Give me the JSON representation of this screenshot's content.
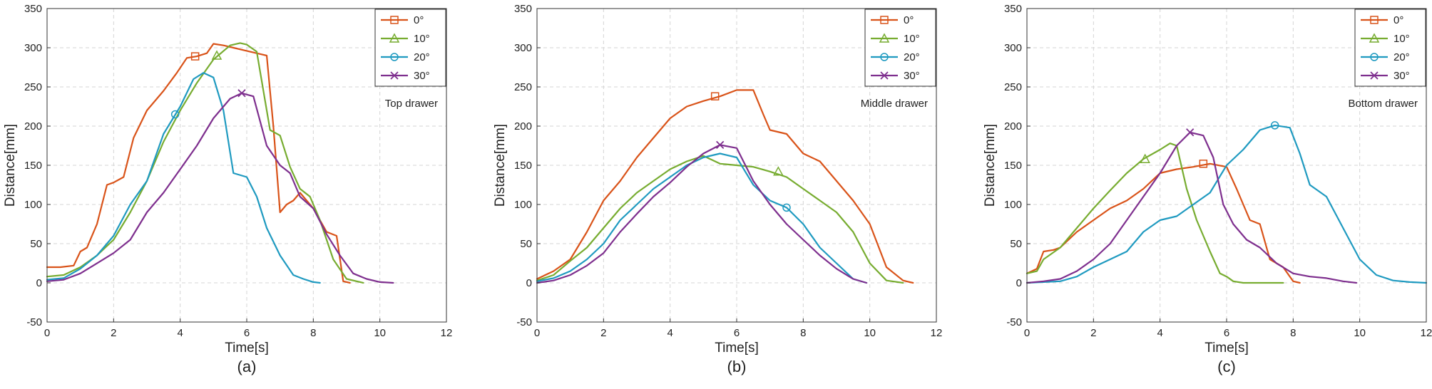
{
  "colors": {
    "c0": "#D95319",
    "c10": "#77AC30",
    "c20": "#1F9AC0",
    "c30": "#7E2F8E",
    "grid": "#d4d4d4",
    "axis": "#333333"
  },
  "chart_data": [
    {
      "type": "line",
      "caption": "(a)",
      "annotation": "Top drawer",
      "xlabel": "Time[s]",
      "ylabel": "Distance[mm]",
      "xlim": [
        0,
        12
      ],
      "ylim": [
        -50,
        350
      ],
      "xticks": [
        "0",
        "2",
        "4",
        "6",
        "8",
        "10",
        "12"
      ],
      "yticks": [
        "-50",
        "0",
        "50",
        "100",
        "150",
        "200",
        "250",
        "300",
        "350"
      ],
      "grid": true,
      "legend_position": "top-right",
      "series": [
        {
          "name": "0°",
          "color_key": "c0",
          "marker": "square",
          "marker_at": [
            4.45,
            289
          ],
          "x": [
            0,
            0.4,
            0.8,
            1.0,
            1.2,
            1.5,
            1.8,
            2.0,
            2.3,
            2.6,
            3.0,
            3.5,
            3.9,
            4.2,
            4.5,
            4.8,
            5.0,
            5.3,
            5.6,
            6.0,
            6.4,
            6.6,
            6.8,
            7.0,
            7.2,
            7.4,
            7.6,
            8.0,
            8.4,
            8.7,
            8.9,
            9.1
          ],
          "y": [
            20,
            20,
            22,
            40,
            45,
            75,
            125,
            128,
            135,
            185,
            220,
            245,
            268,
            287,
            289,
            293,
            305,
            303,
            300,
            296,
            292,
            290,
            200,
            90,
            100,
            105,
            115,
            95,
            65,
            60,
            2,
            0
          ]
        },
        {
          "name": "10°",
          "color_key": "c10",
          "marker": "triangle",
          "marker_at": [
            5.1,
            290
          ],
          "x": [
            0,
            0.5,
            1.0,
            1.5,
            2.0,
            2.5,
            3.0,
            3.5,
            4.0,
            4.5,
            5.0,
            5.5,
            5.8,
            6.0,
            6.3,
            6.7,
            7.0,
            7.3,
            7.6,
            7.9,
            8.2,
            8.6,
            9.0,
            9.5
          ],
          "y": [
            8,
            10,
            20,
            35,
            55,
            90,
            130,
            180,
            220,
            255,
            285,
            303,
            306,
            304,
            295,
            195,
            188,
            148,
            120,
            110,
            80,
            30,
            5,
            0
          ]
        },
        {
          "name": "20°",
          "color_key": "c20",
          "marker": "circle",
          "marker_at": [
            3.85,
            215
          ],
          "x": [
            0,
            0.5,
            1.0,
            1.5,
            2.0,
            2.5,
            3.0,
            3.5,
            4.0,
            4.4,
            4.7,
            5.0,
            5.3,
            5.6,
            6.0,
            6.3,
            6.6,
            7.0,
            7.4,
            7.7,
            8.0,
            8.2
          ],
          "y": [
            4,
            6,
            18,
            35,
            60,
            100,
            130,
            190,
            225,
            260,
            268,
            262,
            220,
            140,
            135,
            110,
            70,
            35,
            10,
            5,
            1,
            0
          ]
        },
        {
          "name": "30°",
          "color_key": "c30",
          "marker": "x",
          "marker_at": [
            5.85,
            242
          ],
          "x": [
            0,
            0.5,
            1.0,
            1.5,
            2.0,
            2.5,
            3.0,
            3.5,
            4.0,
            4.5,
            5.0,
            5.5,
            5.85,
            6.2,
            6.6,
            7.0,
            7.3,
            7.6,
            8.0,
            8.4,
            8.8,
            9.2,
            9.6,
            10.0,
            10.4
          ],
          "y": [
            2,
            4,
            12,
            25,
            38,
            55,
            90,
            115,
            145,
            175,
            210,
            235,
            242,
            238,
            175,
            150,
            140,
            110,
            95,
            62,
            35,
            12,
            5,
            1,
            0
          ]
        }
      ]
    },
    {
      "type": "line",
      "caption": "(b)",
      "annotation": "Middle drawer",
      "xlabel": "Time[s]",
      "ylabel": "Distance[mm]",
      "xlim": [
        0,
        12
      ],
      "ylim": [
        -50,
        350
      ],
      "xticks": [
        "0",
        "2",
        "4",
        "6",
        "8",
        "10",
        "12"
      ],
      "yticks": [
        "-50",
        "0",
        "50",
        "100",
        "150",
        "200",
        "250",
        "300",
        "350"
      ],
      "grid": true,
      "legend_position": "top-right",
      "series": [
        {
          "name": "0°",
          "color_key": "c0",
          "marker": "square",
          "marker_at": [
            5.35,
            238
          ],
          "x": [
            0,
            0.5,
            1.0,
            1.5,
            2.0,
            2.5,
            3.0,
            3.5,
            4.0,
            4.5,
            5.0,
            5.5,
            6.0,
            6.5,
            6.8,
            7.0,
            7.5,
            8.0,
            8.5,
            9.0,
            9.5,
            10.0,
            10.5,
            11.0,
            11.3
          ],
          "y": [
            5,
            15,
            30,
            65,
            105,
            130,
            160,
            185,
            210,
            225,
            232,
            238,
            246,
            246,
            215,
            195,
            190,
            165,
            155,
            130,
            105,
            75,
            20,
            3,
            0
          ]
        },
        {
          "name": "10°",
          "color_key": "c10",
          "marker": "triangle",
          "marker_at": [
            7.25,
            142
          ],
          "x": [
            0,
            0.5,
            1.0,
            1.5,
            2.0,
            2.5,
            3.0,
            3.5,
            4.0,
            4.5,
            5.0,
            5.5,
            6.0,
            6.5,
            7.0,
            7.5,
            8.0,
            8.5,
            9.0,
            9.5,
            10.0,
            10.5,
            11.0
          ],
          "y": [
            3,
            10,
            28,
            45,
            70,
            95,
            115,
            130,
            145,
            155,
            162,
            152,
            150,
            148,
            142,
            135,
            120,
            105,
            90,
            65,
            25,
            3,
            0
          ]
        },
        {
          "name": "20°",
          "color_key": "c20",
          "marker": "circle",
          "marker_at": [
            7.5,
            96
          ],
          "x": [
            0,
            0.5,
            1.0,
            1.5,
            2.0,
            2.5,
            3.0,
            3.5,
            4.0,
            4.5,
            5.0,
            5.5,
            6.0,
            6.5,
            7.0,
            7.5,
            8.0,
            8.5,
            9.0,
            9.5,
            9.9
          ],
          "y": [
            2,
            6,
            15,
            30,
            50,
            80,
            100,
            120,
            135,
            150,
            160,
            165,
            160,
            125,
            105,
            96,
            75,
            45,
            25,
            5,
            0
          ]
        },
        {
          "name": "30°",
          "color_key": "c30",
          "marker": "x",
          "marker_at": [
            5.5,
            176
          ],
          "x": [
            0,
            0.5,
            1.0,
            1.5,
            2.0,
            2.5,
            3.0,
            3.5,
            4.0,
            4.5,
            5.0,
            5.5,
            6.0,
            6.5,
            7.0,
            7.5,
            8.0,
            8.5,
            9.0,
            9.5,
            9.9
          ],
          "y": [
            0,
            3,
            10,
            22,
            38,
            65,
            88,
            110,
            128,
            148,
            165,
            176,
            172,
            130,
            100,
            75,
            55,
            35,
            18,
            5,
            0
          ]
        }
      ]
    },
    {
      "type": "line",
      "caption": "(c)",
      "annotation": "Bottom drawer",
      "xlabel": "Time[s]",
      "ylabel": "Distance[mm]",
      "xlim": [
        0,
        12
      ],
      "ylim": [
        -50,
        350
      ],
      "xticks": [
        "0",
        "2",
        "4",
        "6",
        "8",
        "10",
        "12"
      ],
      "yticks": [
        "-50",
        "0",
        "50",
        "100",
        "150",
        "200",
        "250",
        "300",
        "350"
      ],
      "grid": true,
      "legend_position": "top-right",
      "series": [
        {
          "name": "0°",
          "color_key": "c0",
          "marker": "square",
          "marker_at": [
            5.3,
            152
          ],
          "x": [
            0,
            0.3,
            0.5,
            0.8,
            1.0,
            1.5,
            2.0,
            2.5,
            3.0,
            3.5,
            4.0,
            4.5,
            5.0,
            5.5,
            6.0,
            6.3,
            6.7,
            7.0,
            7.3,
            7.7,
            8.0,
            8.2
          ],
          "y": [
            12,
            18,
            40,
            42,
            45,
            65,
            80,
            95,
            105,
            120,
            140,
            145,
            148,
            152,
            148,
            120,
            80,
            75,
            30,
            20,
            2,
            0
          ]
        },
        {
          "name": "10°",
          "color_key": "c10",
          "marker": "triangle",
          "marker_at": [
            3.55,
            158
          ],
          "x": [
            0,
            0.3,
            0.5,
            1.0,
            1.5,
            2.0,
            2.5,
            3.0,
            3.5,
            4.0,
            4.3,
            4.5,
            4.8,
            5.1,
            5.5,
            5.8,
            6.0,
            6.2,
            6.5,
            7.0,
            7.7
          ],
          "y": [
            12,
            15,
            30,
            45,
            70,
            95,
            118,
            140,
            158,
            170,
            178,
            175,
            120,
            80,
            40,
            12,
            8,
            2,
            0,
            0,
            0
          ]
        },
        {
          "name": "20°",
          "color_key": "c20",
          "marker": "circle",
          "marker_at": [
            7.45,
            201
          ],
          "x": [
            0,
            0.5,
            1.0,
            1.5,
            2.0,
            2.5,
            3.0,
            3.5,
            4.0,
            4.5,
            5.0,
            5.5,
            6.0,
            6.5,
            7.0,
            7.45,
            7.9,
            8.2,
            8.5,
            9.0,
            9.5,
            10.0,
            10.5,
            11.0,
            11.5,
            12.0
          ],
          "y": [
            0,
            1,
            2,
            8,
            20,
            30,
            40,
            65,
            80,
            85,
            100,
            115,
            150,
            170,
            195,
            201,
            198,
            165,
            125,
            110,
            70,
            30,
            10,
            3,
            1,
            0
          ]
        },
        {
          "name": "30°",
          "color_key": "c30",
          "marker": "x",
          "marker_at": [
            4.9,
            192
          ],
          "x": [
            0,
            0.5,
            1.0,
            1.5,
            2.0,
            2.5,
            3.0,
            3.5,
            4.0,
            4.5,
            4.9,
            5.3,
            5.6,
            5.9,
            6.2,
            6.6,
            7.0,
            7.5,
            8.0,
            8.5,
            9.0,
            9.5,
            9.9
          ],
          "y": [
            0,
            2,
            5,
            15,
            30,
            50,
            80,
            110,
            140,
            175,
            192,
            188,
            160,
            100,
            75,
            55,
            45,
            25,
            12,
            8,
            6,
            2,
            0
          ]
        }
      ]
    }
  ]
}
